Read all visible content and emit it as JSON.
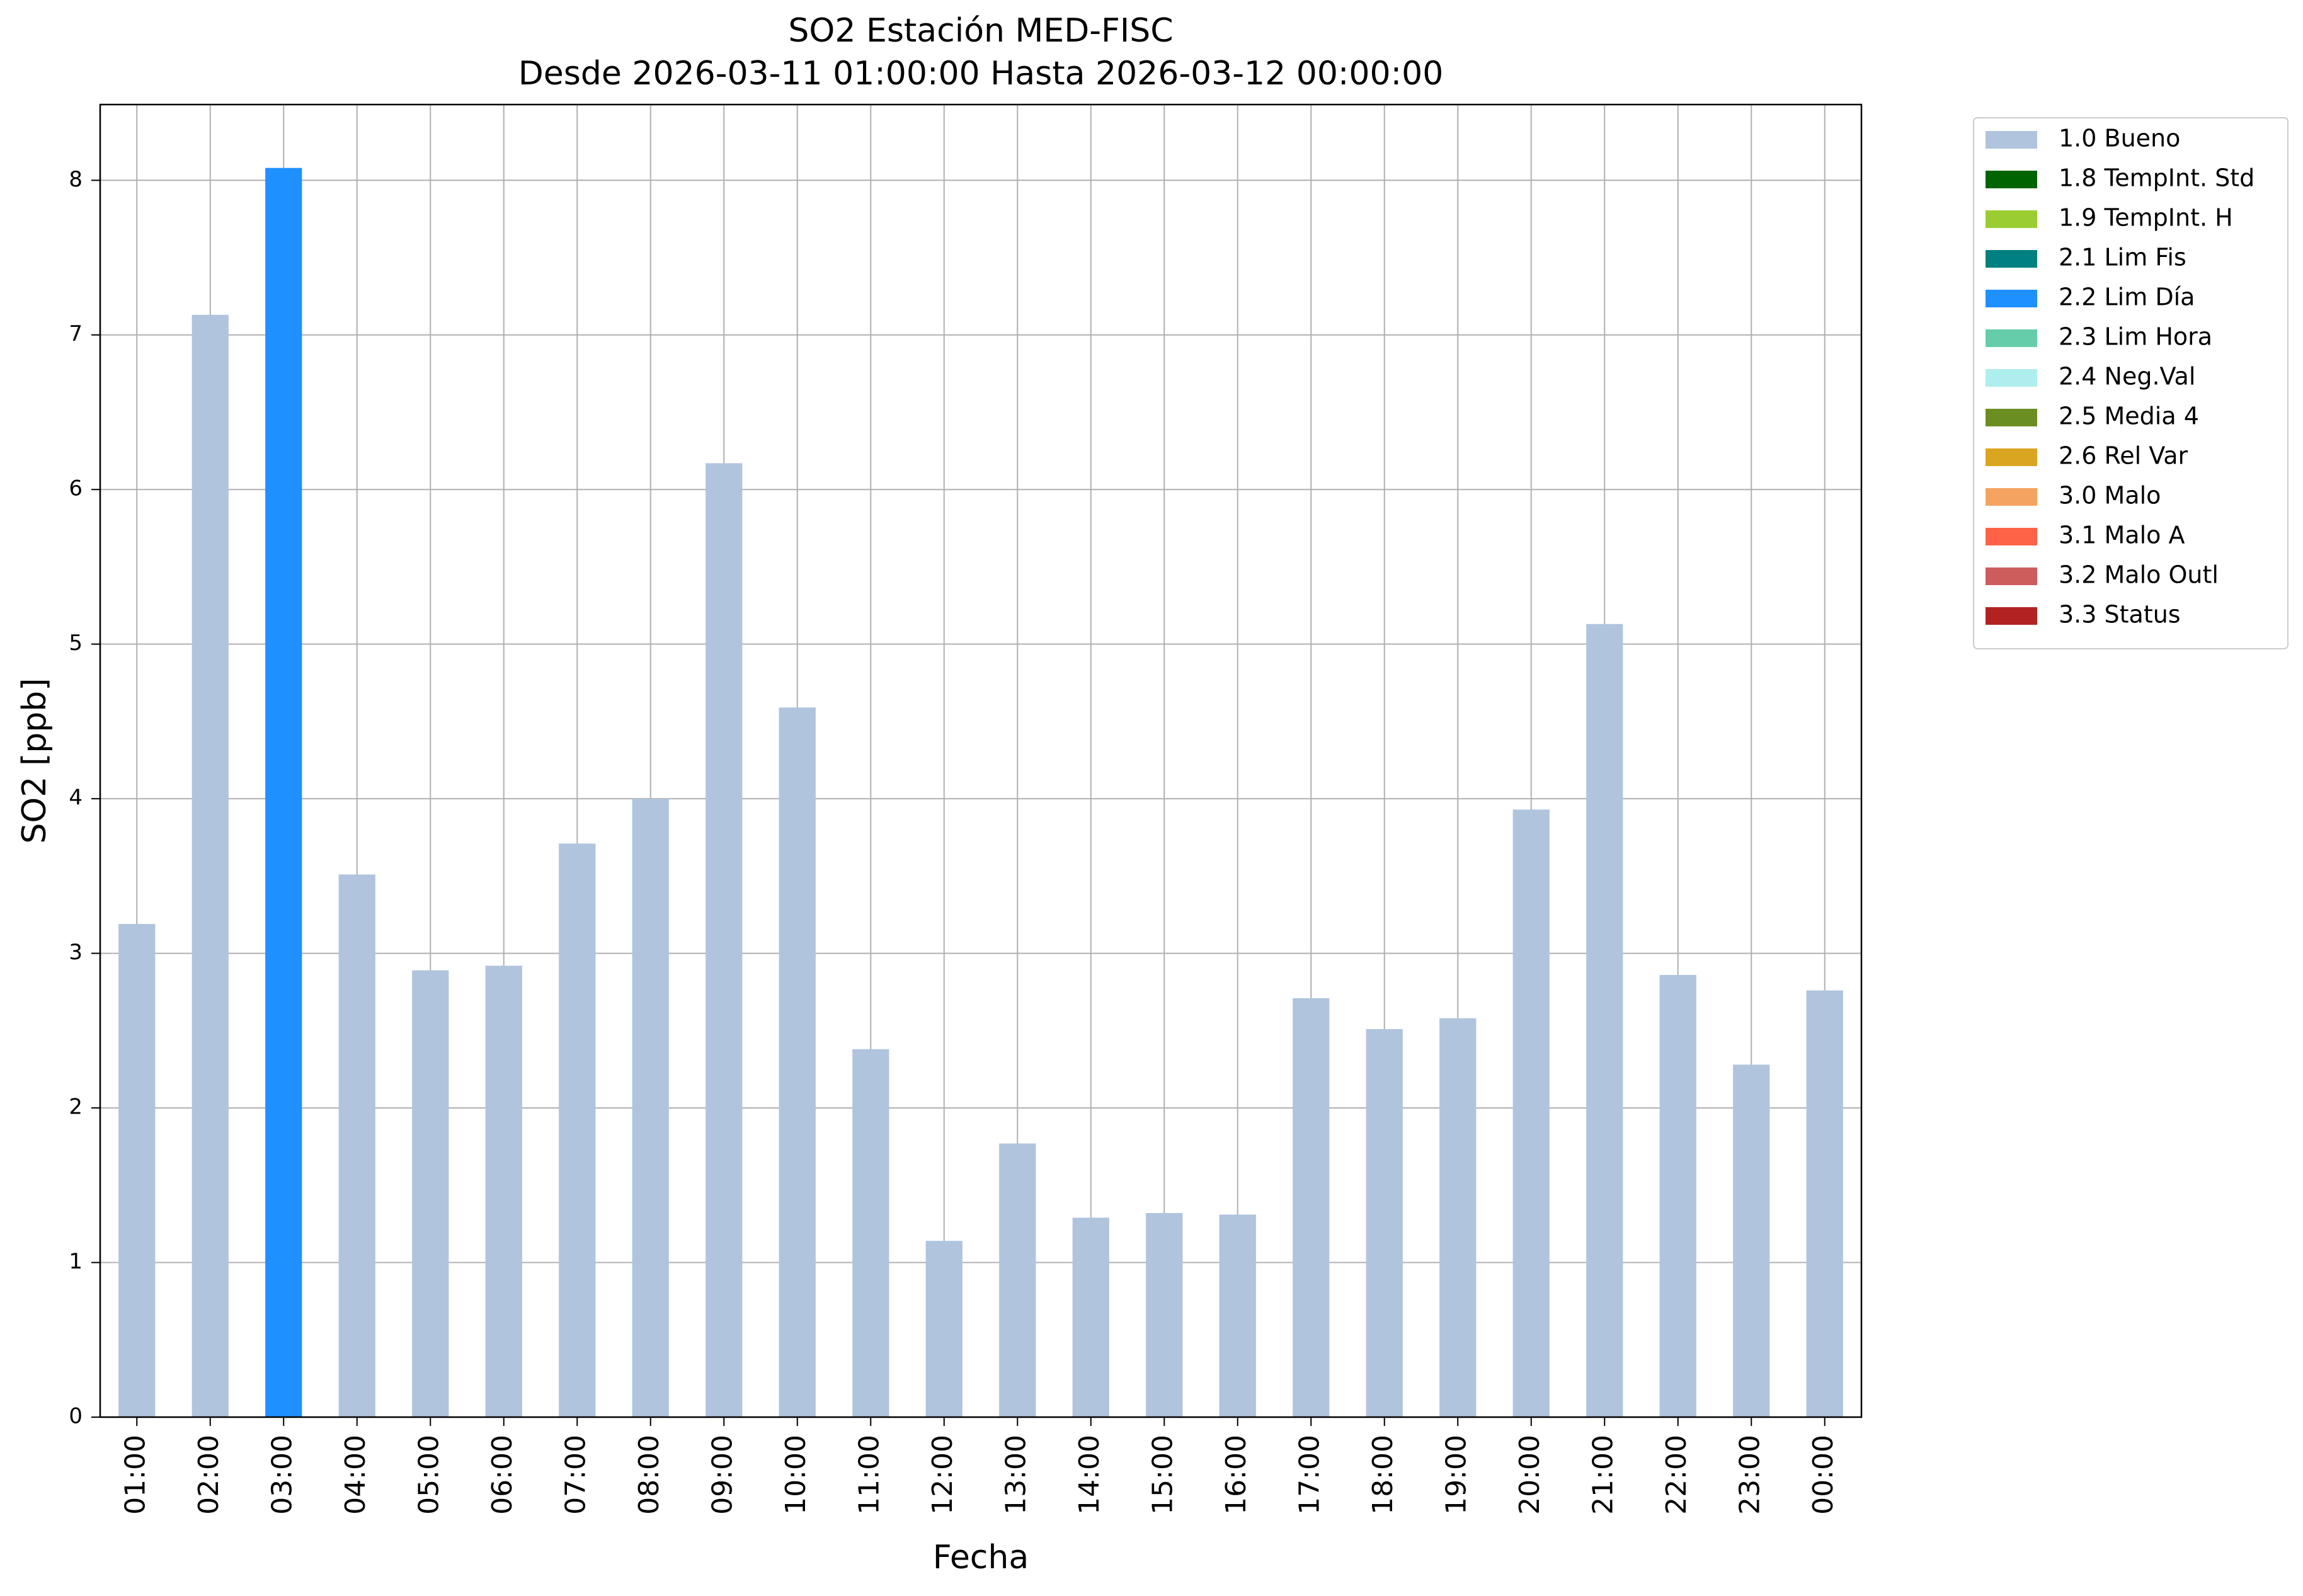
{
  "chart_data": {
    "type": "bar",
    "stacked": true,
    "title": "SO2 Estación MED-FISC",
    "subtitle": "Desde 2026-03-11 01:00:00 Hasta 2026-03-12 00:00:00",
    "x_label": "Fecha",
    "y_label": "SO2 [ppb]",
    "categories": [
      "01:00",
      "02:00",
      "03:00",
      "04:00",
      "05:00",
      "06:00",
      "07:00",
      "08:00",
      "09:00",
      "10:00",
      "11:00",
      "12:00",
      "13:00",
      "14:00",
      "15:00",
      "16:00",
      "17:00",
      "18:00",
      "19:00",
      "20:00",
      "21:00",
      "22:00",
      "23:00",
      "00:00"
    ],
    "series": [
      {
        "name": "1.0 Bueno",
        "color": "#b0c4de",
        "values": [
          3.19,
          7.13,
          null,
          3.51,
          2.89,
          2.92,
          3.71,
          4.0,
          6.17,
          4.59,
          2.38,
          1.14,
          1.77,
          1.29,
          1.32,
          1.31,
          2.71,
          2.51,
          2.58,
          3.93,
          5.13,
          2.86,
          2.28,
          2.76
        ]
      },
      {
        "name": "1.8 TempInt. Std",
        "color": "#006400",
        "values": [
          null,
          null,
          null,
          null,
          null,
          null,
          null,
          null,
          null,
          null,
          null,
          null,
          null,
          null,
          null,
          null,
          null,
          null,
          null,
          null,
          null,
          null,
          null,
          null
        ]
      },
      {
        "name": "1.9 TempInt. H",
        "color": "#9acd32",
        "values": [
          null,
          null,
          null,
          null,
          null,
          null,
          null,
          null,
          null,
          null,
          null,
          null,
          null,
          null,
          null,
          null,
          null,
          null,
          null,
          null,
          null,
          null,
          null,
          null
        ]
      },
      {
        "name": "2.1 Lim Fis",
        "color": "#008080",
        "values": [
          null,
          null,
          null,
          null,
          null,
          null,
          null,
          null,
          null,
          null,
          null,
          null,
          null,
          null,
          null,
          null,
          null,
          null,
          null,
          null,
          null,
          null,
          null,
          null
        ]
      },
      {
        "name": "2.2 Lim Día",
        "color": "#1e90ff",
        "values": [
          null,
          null,
          8.08,
          null,
          null,
          null,
          null,
          null,
          null,
          null,
          null,
          null,
          null,
          null,
          null,
          null,
          null,
          null,
          null,
          null,
          null,
          null,
          null,
          null
        ]
      },
      {
        "name": "2.3 Lim Hora",
        "color": "#66cdaa",
        "values": [
          null,
          null,
          null,
          null,
          null,
          null,
          null,
          null,
          null,
          null,
          null,
          null,
          null,
          null,
          null,
          null,
          null,
          null,
          null,
          null,
          null,
          null,
          null,
          null
        ]
      },
      {
        "name": "2.4 Neg.Val",
        "color": "#afeeee",
        "values": [
          null,
          null,
          null,
          null,
          null,
          null,
          null,
          null,
          null,
          null,
          null,
          null,
          null,
          null,
          null,
          null,
          null,
          null,
          null,
          null,
          null,
          null,
          null,
          null
        ]
      },
      {
        "name": "2.5 Media 4",
        "color": "#6b8e23",
        "values": [
          null,
          null,
          null,
          null,
          null,
          null,
          null,
          null,
          null,
          null,
          null,
          null,
          null,
          null,
          null,
          null,
          null,
          null,
          null,
          null,
          null,
          null,
          null,
          null
        ]
      },
      {
        "name": "2.6 Rel Var",
        "color": "#daa520",
        "values": [
          null,
          null,
          null,
          null,
          null,
          null,
          null,
          null,
          null,
          null,
          null,
          null,
          null,
          null,
          null,
          null,
          null,
          null,
          null,
          null,
          null,
          null,
          null,
          null
        ]
      },
      {
        "name": "3.0 Malo",
        "color": "#f4a460",
        "values": [
          null,
          null,
          null,
          null,
          null,
          null,
          null,
          null,
          null,
          null,
          null,
          null,
          null,
          null,
          null,
          null,
          null,
          null,
          null,
          null,
          null,
          null,
          null,
          null
        ]
      },
      {
        "name": "3.1 Malo A",
        "color": "#ff6347",
        "values": [
          null,
          null,
          null,
          null,
          null,
          null,
          null,
          null,
          null,
          null,
          null,
          null,
          null,
          null,
          null,
          null,
          null,
          null,
          null,
          null,
          null,
          null,
          null,
          null
        ]
      },
      {
        "name": "3.2 Malo Outl",
        "color": "#cd5c5c",
        "values": [
          null,
          null,
          null,
          null,
          null,
          null,
          null,
          null,
          null,
          null,
          null,
          null,
          null,
          null,
          null,
          null,
          null,
          null,
          null,
          null,
          null,
          null,
          null,
          null
        ]
      },
      {
        "name": "3.3 Status",
        "color": "#b22222",
        "values": [
          null,
          null,
          null,
          null,
          null,
          null,
          null,
          null,
          null,
          null,
          null,
          null,
          null,
          null,
          null,
          null,
          null,
          null,
          null,
          null,
          null,
          null,
          null,
          null
        ]
      }
    ],
    "ylim": [
      0,
      8.49
    ],
    "yticks": [
      0,
      1,
      2,
      3,
      4,
      5,
      6,
      7,
      8
    ],
    "grid": true,
    "legend": "outside-right"
  }
}
